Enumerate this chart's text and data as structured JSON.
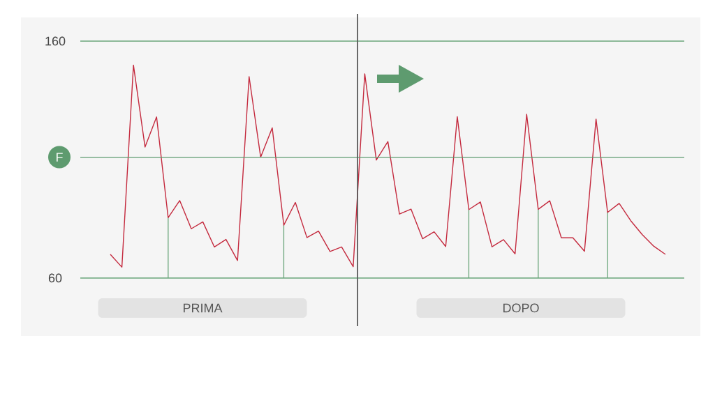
{
  "chart_data": {
    "type": "line",
    "ylim": [
      60,
      160
    ],
    "yticks": [
      60,
      160
    ],
    "grid": "y",
    "tick_labels": "y",
    "categories": [
      null,
      null,
      null,
      null,
      null,
      null,
      null,
      null,
      null,
      null,
      null,
      null,
      null,
      null,
      null,
      null,
      null,
      null,
      null,
      null,
      null,
      null,
      null,
      null,
      null,
      null,
      null,
      null,
      null,
      null,
      null,
      null,
      null,
      null,
      null,
      null,
      null,
      null,
      null,
      null,
      null,
      null,
      null,
      null,
      null,
      null,
      null,
      null,
      null
    ],
    "series": [
      {
        "color": "#c42a3e",
        "values": [
          70.0,
          64.6,
          149.9,
          115.3,
          128.0,
          85.5,
          92.7,
          80.8,
          83.7,
          73.1,
          76.3,
          67.4,
          145.0,
          111.0,
          123.4,
          82.3,
          91.9,
          77.1,
          79.8,
          71.2,
          73.1,
          64.8,
          146.2,
          109.8,
          117.6,
          87.0,
          89.1,
          76.6,
          79.5,
          73.3,
          128.1,
          88.9,
          92.1,
          73.2,
          76.2,
          70.2,
          129.1,
          89.0,
          92.6,
          77.0,
          77.0,
          71.3,
          127.1,
          87.7,
          91.5,
          84.2,
          78.3,
          73.4,
          70.0
        ],
        "errors": [
          null,
          null,
          null,
          null,
          null,
          [
            60,
            85.5
          ],
          null,
          null,
          null,
          null,
          null,
          null,
          null,
          null,
          null,
          [
            60,
            82.3
          ],
          null,
          null,
          null,
          null,
          null,
          null,
          null,
          null,
          null,
          null,
          null,
          null,
          null,
          null,
          null,
          [
            60,
            88.9
          ],
          null,
          null,
          null,
          null,
          null,
          [
            60,
            89.0
          ],
          null,
          null,
          null,
          null,
          null,
          [
            60,
            87.7
          ],
          null,
          null,
          null,
          null,
          null
        ]
      }
    ],
    "ref_lines": [
      {
        "axis": "y",
        "value": 111,
        "label": "F",
        "color": "#5e9b6f"
      }
    ],
    "annotations": [
      "PRIMA",
      "DOPO"
    ]
  }
}
